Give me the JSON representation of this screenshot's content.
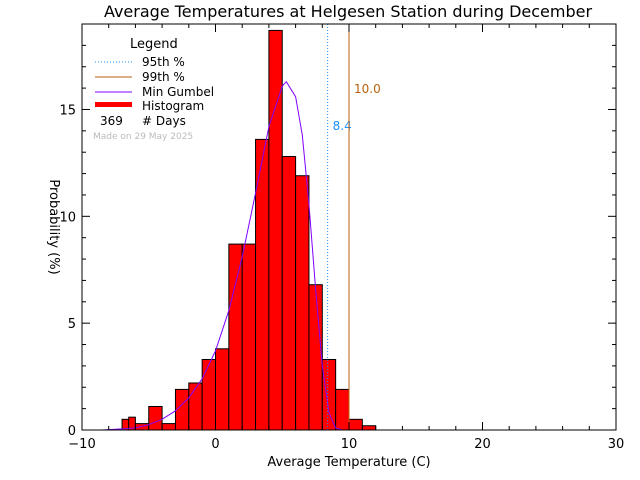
{
  "chart_data": {
    "type": "bar",
    "title": "Average Temperatures at Helgesen Station during December",
    "xlabel": "Average Temperature (C)",
    "ylabel": "Probability (%)",
    "xlim": [
      -10,
      30
    ],
    "ylim": [
      0,
      19
    ],
    "xticks": [
      -10,
      0,
      10,
      20,
      30
    ],
    "yticks": [
      0,
      5,
      10,
      15
    ],
    "bin_width": 1,
    "histogram": {
      "name": "Histogram",
      "color": "#ff0000",
      "bins": [
        {
          "x0": -7,
          "value": 0.5
        },
        {
          "x0": -6.5,
          "value": 0.6
        },
        {
          "x0": -6,
          "value": 0.3
        },
        {
          "x0": -5,
          "value": 1.1
        },
        {
          "x0": -4,
          "value": 0.3
        },
        {
          "x0": -3,
          "value": 1.9
        },
        {
          "x0": -2,
          "value": 2.2
        },
        {
          "x0": -1,
          "value": 3.3
        },
        {
          "x0": 0,
          "value": 3.8
        },
        {
          "x0": 1,
          "value": 8.7
        },
        {
          "x0": 2,
          "value": 8.7
        },
        {
          "x0": 3,
          "value": 13.6
        },
        {
          "x0": 4,
          "value": 18.7
        },
        {
          "x0": 5,
          "value": 12.8
        },
        {
          "x0": 6,
          "value": 11.9
        },
        {
          "x0": 7,
          "value": 6.8
        },
        {
          "x0": 8,
          "value": 3.3
        },
        {
          "x0": 9,
          "value": 1.9
        },
        {
          "x0": 10,
          "value": 0.5
        },
        {
          "x0": 11,
          "value": 0.2
        }
      ]
    },
    "gumbel_curve": {
      "name": "Min Gumbel",
      "color": "#8000ff",
      "x": [
        -8.5,
        -7,
        -6,
        -5,
        -4,
        -3,
        -2,
        -1,
        0,
        1,
        2,
        3,
        4,
        5,
        5.3,
        6,
        6.5,
        7,
        7.5,
        8,
        8.5,
        9,
        9.5,
        10
      ],
      "y": [
        0.0,
        0.05,
        0.1,
        0.25,
        0.5,
        0.9,
        1.5,
        2.4,
        3.7,
        5.6,
        8.1,
        11.1,
        14.2,
        16.1,
        16.3,
        15.6,
        13.8,
        10.6,
        6.6,
        3.0,
        0.8,
        0.1,
        0.0,
        0.0
      ]
    },
    "percentile_lines": [
      {
        "name": "95th %",
        "value": 8.4,
        "label": "8.4",
        "color": "#1e90ff",
        "style": "dotted"
      },
      {
        "name": "99th %",
        "value": 10.0,
        "label": "10.0",
        "color": "#b8620f",
        "style": "solid"
      }
    ],
    "legend": {
      "title": "Legend",
      "position": "top-left",
      "days_count": "369",
      "days_label": "# Days"
    },
    "note": "Made on 29 May 2025",
    "grid": false
  }
}
